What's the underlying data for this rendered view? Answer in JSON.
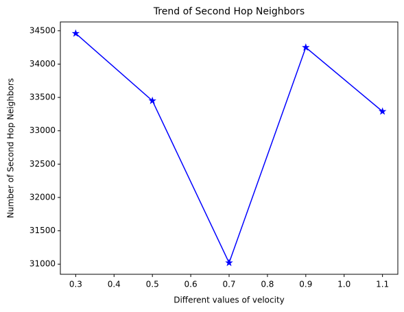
{
  "chart_data": {
    "type": "line",
    "title": "Trend of Second Hop Neighbors",
    "x_label": "Different values of velocity",
    "y_label": "Number of Second Hop Neighbors",
    "x": [
      0.3,
      0.5,
      0.7,
      0.9,
      1.1
    ],
    "series": [
      {
        "color": "#0000ff",
        "marker": "star",
        "values": [
          34460,
          33450,
          31020,
          34250,
          33290
        ]
      }
    ],
    "xlim": [
      0.26,
      1.14
    ],
    "xticks": [
      0.3,
      0.4,
      0.5,
      0.6,
      0.7,
      0.8,
      0.9,
      {
        "value": 1,
        "label": "1.0"
      },
      1.1
    ],
    "ylim": [
      30848,
      34632
    ],
    "yticks": [
      31000,
      31500,
      32000,
      32500,
      33000,
      33500,
      34000,
      34500
    ],
    "grid": false
  }
}
